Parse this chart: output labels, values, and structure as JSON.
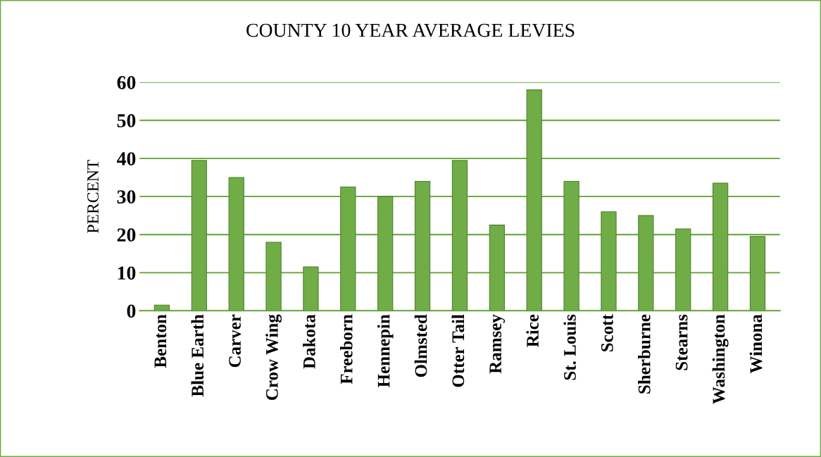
{
  "chart_data": {
    "type": "bar",
    "title": "COUNTY 10 YEAR AVERAGE LEVIES",
    "ylabel": "PERCENT",
    "categories": [
      "Benton",
      "Blue Earth",
      "Carver",
      "Crow Wing",
      "Dakota",
      "Freeborn",
      "Hennepin",
      "Olmsted",
      "Otter Tail",
      "Ramsey",
      "Rice",
      "St. Louis",
      "Scott",
      "Sherburne",
      "Stearns",
      "Washington",
      "Winona"
    ],
    "values": [
      1.5,
      39.5,
      35,
      18,
      11.5,
      32.5,
      30,
      34,
      39.5,
      22.5,
      58,
      34,
      26,
      25,
      21.5,
      33.5,
      19.5
    ],
    "color": "#70ad47",
    "ylim": [
      0,
      60
    ],
    "yticks": [
      0,
      10,
      20,
      30,
      40,
      50,
      60
    ],
    "grid": "y"
  }
}
